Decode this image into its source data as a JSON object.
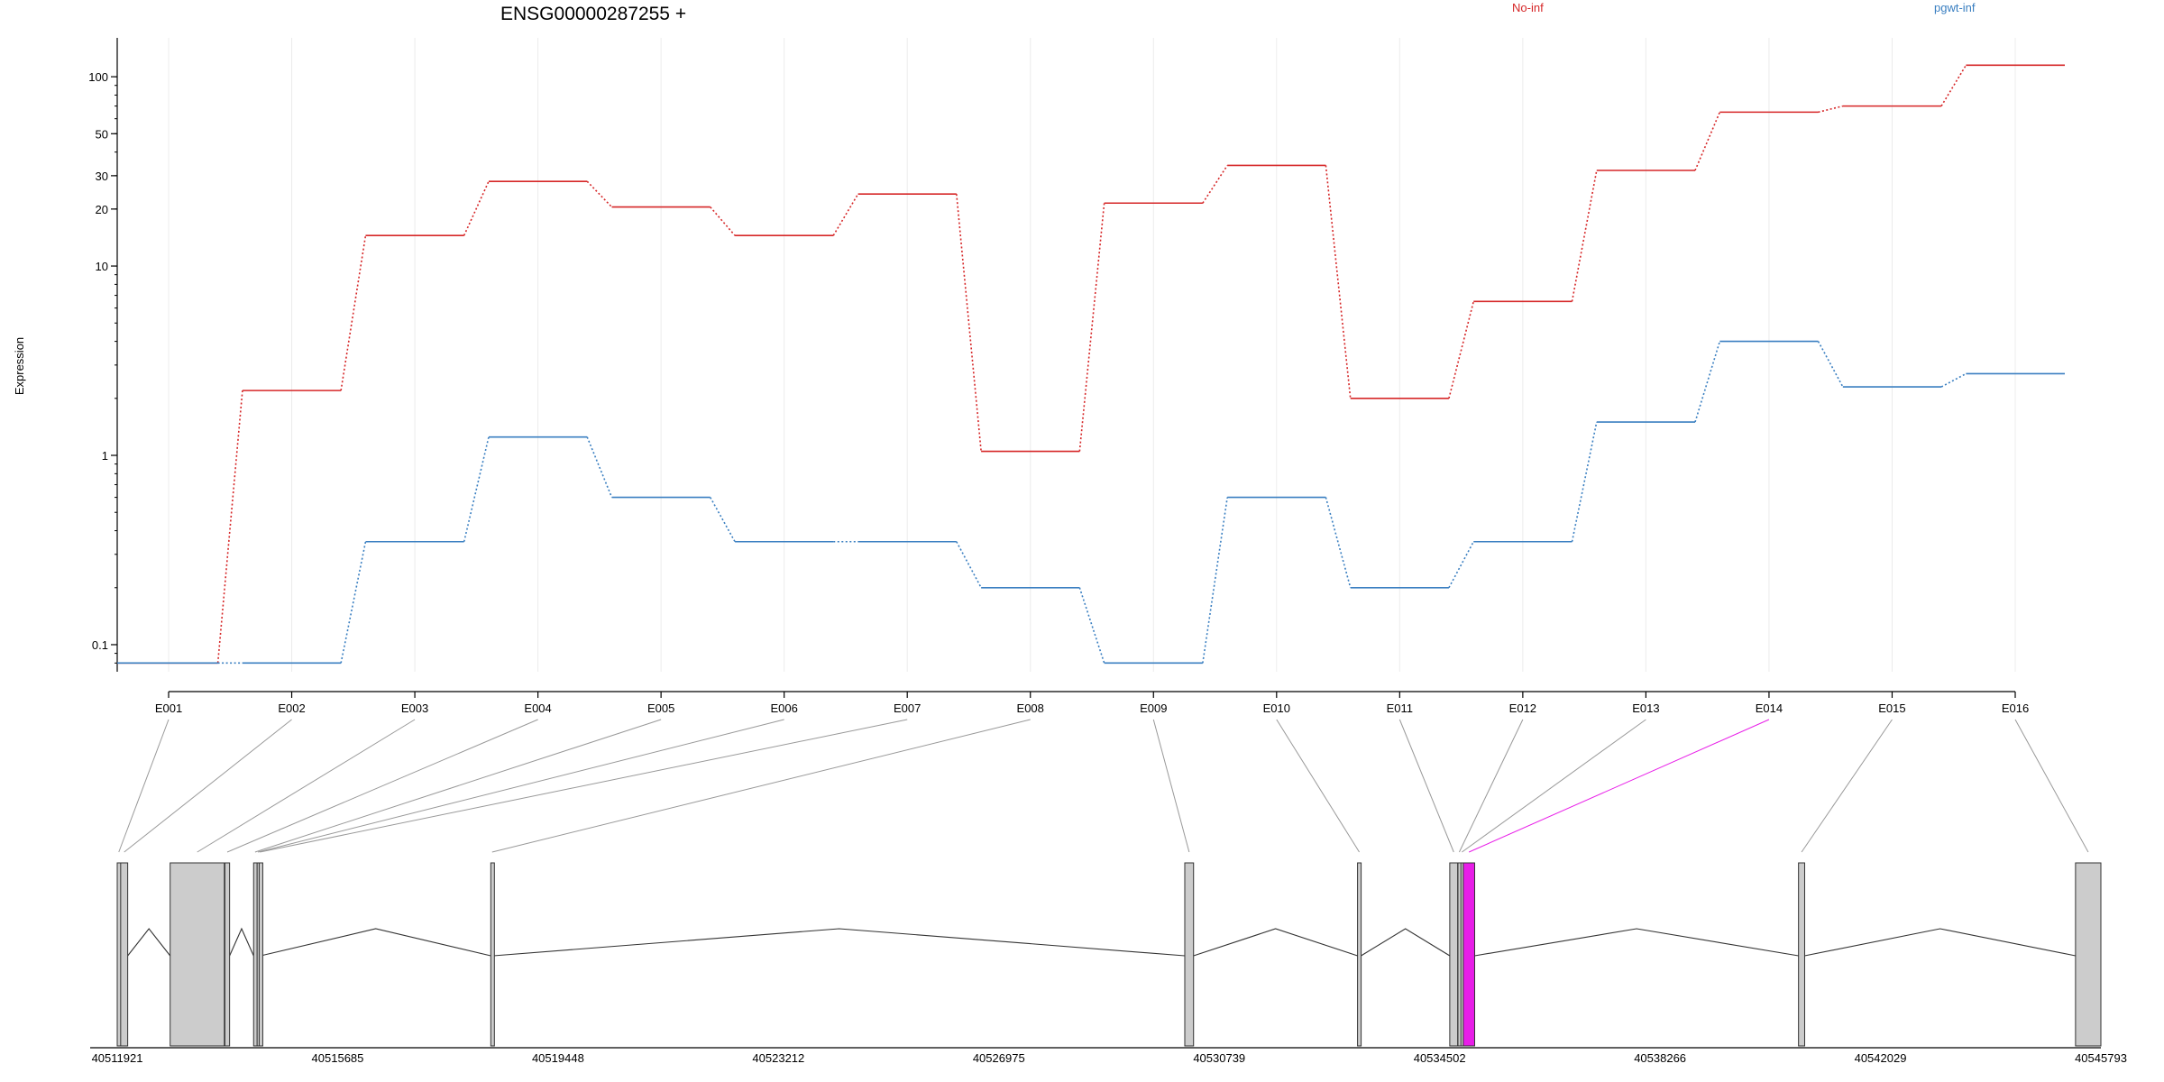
{
  "title": "ENSG00000287255 +",
  "legend": [
    {
      "label": "No-inf",
      "color": "#d62728"
    },
    {
      "label": "pgwt-inf",
      "color": "#3a7fc1"
    }
  ],
  "chart_data": {
    "type": "line",
    "ylabel": "Expression",
    "yscale": "log",
    "yticks": [
      {
        "value": 0.1,
        "label": "0.1"
      },
      {
        "value": 1,
        "label": "1"
      },
      {
        "value": 10,
        "label": "10"
      },
      {
        "value": 20,
        "label": "20"
      },
      {
        "value": 30,
        "label": "30"
      },
      {
        "value": 50,
        "label": "50"
      },
      {
        "value": 100,
        "label": "100"
      }
    ],
    "categories": [
      "E001",
      "E002",
      "E003",
      "E004",
      "E005",
      "E006",
      "E007",
      "E008",
      "E009",
      "E010",
      "E011",
      "E012",
      "E013",
      "E014",
      "E015",
      "E016"
    ],
    "series": [
      {
        "name": "No-inf",
        "color": "#d62728",
        "values": [
          0.08,
          2.2,
          14.5,
          28,
          20.5,
          14.5,
          24,
          1.05,
          21.5,
          34,
          2.0,
          6.5,
          32,
          65,
          70,
          115
        ]
      },
      {
        "name": "pgwt-inf",
        "color": "#3a7fc1",
        "values": [
          0.08,
          0.08,
          0.35,
          1.25,
          0.6,
          0.35,
          0.35,
          0.2,
          0.08,
          0.6,
          0.2,
          0.35,
          1.5,
          4.0,
          2.3,
          2.7
        ]
      }
    ],
    "gene_model": {
      "coordinates": [
        "40511921",
        "40515685",
        "40519448",
        "40523212",
        "40526975",
        "40530739",
        "40534502",
        "40538266",
        "40542029",
        "40545793"
      ],
      "coord_min": 40511921,
      "coord_max": 40545793,
      "highlight_color": "#e81ee8",
      "exons": [
        {
          "id": "E001",
          "start": 40511921,
          "end": 40511975
        },
        {
          "id": "E002",
          "start": 40511980,
          "end": 40512100
        },
        {
          "id": "E003",
          "start": 40512825,
          "end": 40513750
        },
        {
          "id": "E004",
          "start": 40513760,
          "end": 40513840
        },
        {
          "id": "E005",
          "start": 40514250,
          "end": 40514300
        },
        {
          "id": "E006",
          "start": 40514310,
          "end": 40514340
        },
        {
          "id": "E007",
          "start": 40514345,
          "end": 40514370
        },
        {
          "id": "E008",
          "start": 40518300,
          "end": 40518345
        },
        {
          "id": "E009",
          "start": 40530150,
          "end": 40530300
        },
        {
          "id": "E010",
          "start": 40533100,
          "end": 40533160
        },
        {
          "id": "E011",
          "start": 40534675,
          "end": 40534810
        },
        {
          "id": "E012",
          "start": 40534815,
          "end": 40534860
        },
        {
          "id": "E013",
          "start": 40534865,
          "end": 40534900
        },
        {
          "id": "E014",
          "start": 40534905,
          "end": 40535100,
          "highlight": true
        },
        {
          "id": "E015",
          "start": 40540630,
          "end": 40540735
        },
        {
          "id": "E016",
          "start": 40545360,
          "end": 40545793
        }
      ]
    }
  }
}
